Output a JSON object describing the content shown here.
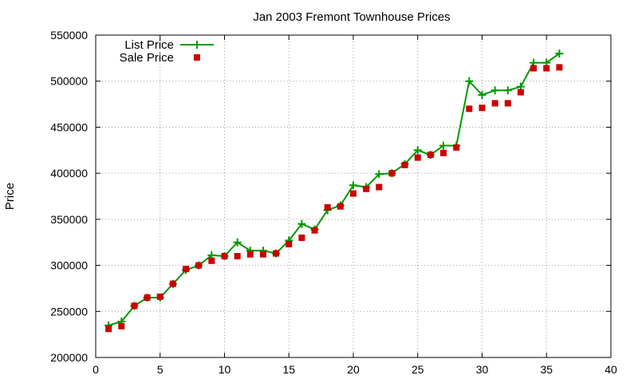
{
  "chart_data": {
    "type": "line",
    "title": "Jan 2003 Fremont Townhouse Prices",
    "xlabel": "",
    "ylabel": "Price",
    "xlim": [
      0,
      40
    ],
    "ylim": [
      200000,
      550000
    ],
    "x_ticks": [
      0,
      5,
      10,
      15,
      20,
      25,
      30,
      35,
      40
    ],
    "y_ticks": [
      200000,
      250000,
      300000,
      350000,
      400000,
      450000,
      500000,
      550000
    ],
    "grid": true,
    "legend_position": "top-left",
    "series": [
      {
        "name": "List Price",
        "style": "line-with-plus-markers",
        "color": "#009900",
        "x": [
          1,
          2,
          3,
          4,
          5,
          6,
          7,
          8,
          9,
          10,
          11,
          12,
          13,
          14,
          15,
          16,
          17,
          18,
          19,
          20,
          21,
          22,
          23,
          24,
          25,
          26,
          27,
          28,
          29,
          30,
          31,
          32,
          33,
          34,
          35,
          36
        ],
        "values": [
          234900,
          239000,
          256000,
          265000,
          265000,
          279900,
          295000,
          299900,
          311000,
          310000,
          325000,
          316000,
          316000,
          313000,
          327000,
          345000,
          339000,
          360000,
          365000,
          387000,
          385000,
          399000,
          400000,
          410000,
          425000,
          420000,
          430000,
          430000,
          500000,
          485000,
          490000,
          490000,
          494000,
          520000,
          520000,
          530000
        ]
      },
      {
        "name": "Sale Price",
        "style": "square-markers",
        "color": "#cc0000",
        "x": [
          1,
          2,
          3,
          4,
          5,
          6,
          7,
          8,
          9,
          10,
          11,
          12,
          13,
          14,
          15,
          16,
          17,
          18,
          19,
          20,
          21,
          22,
          23,
          24,
          25,
          26,
          27,
          28,
          29,
          30,
          31,
          32,
          33,
          34,
          35,
          36
        ],
        "values": [
          231000,
          234000,
          256000,
          265000,
          266000,
          280000,
          296000,
          300000,
          305000,
          310000,
          310000,
          312000,
          312000,
          313000,
          323000,
          330000,
          338000,
          363000,
          364000,
          378000,
          383000,
          385000,
          400000,
          409000,
          417000,
          420000,
          422000,
          428000,
          470000,
          471000,
          476000,
          476000,
          488000,
          514000,
          514000,
          515000
        ]
      }
    ]
  }
}
